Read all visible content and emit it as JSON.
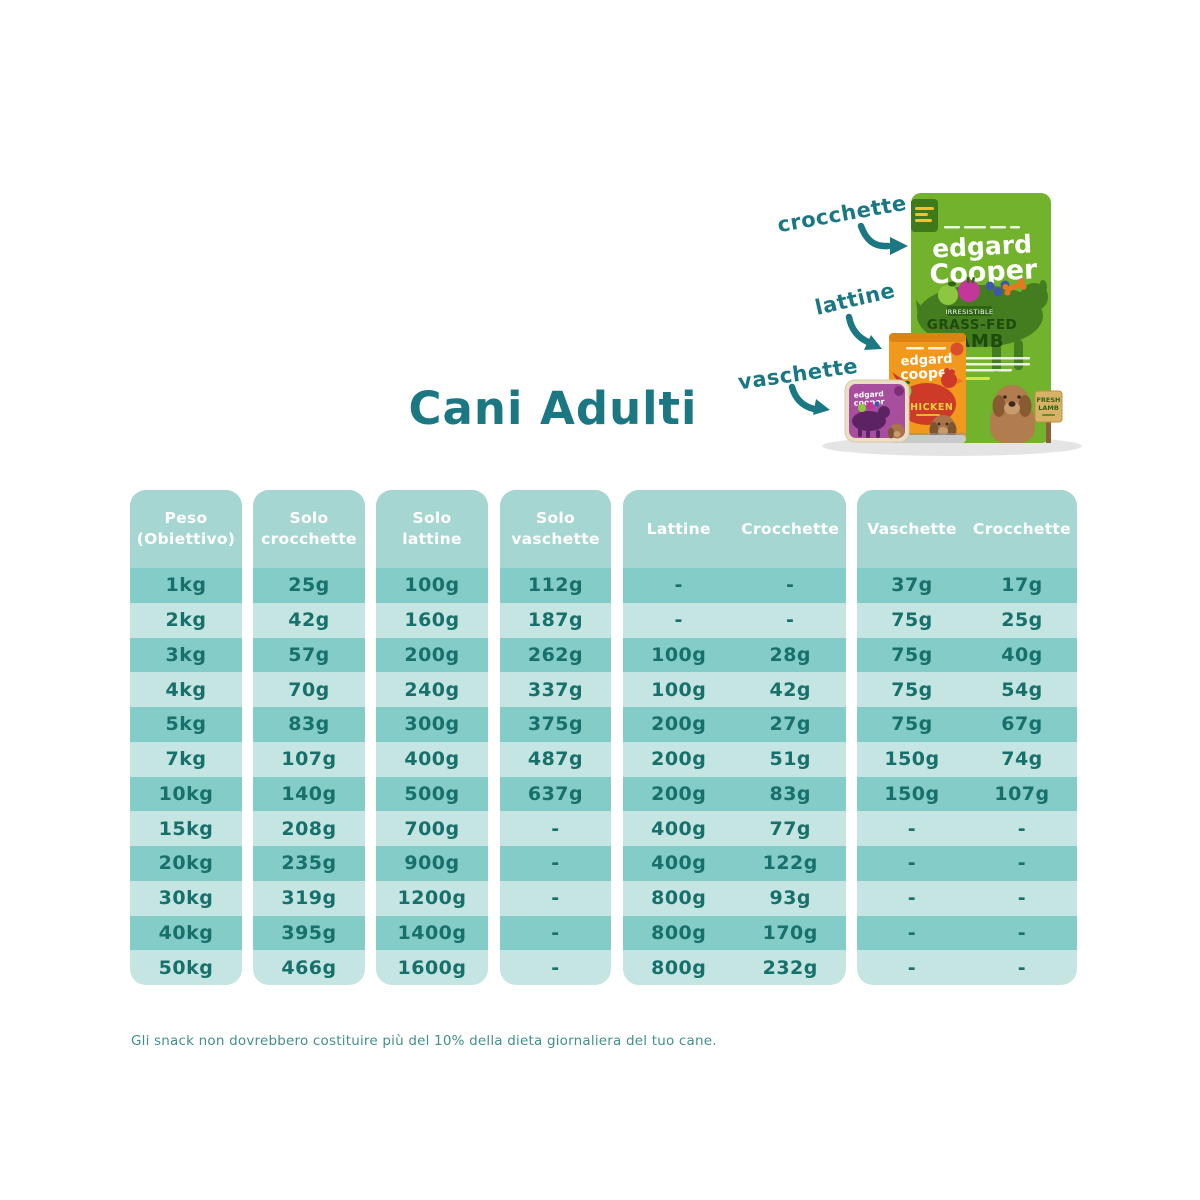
{
  "title": "Cani Adulti",
  "footnote": "Gli snack non dovrebbero costituire più del 10% della dieta giornaliera del tuo cane.",
  "product_labels": {
    "crocchette": "crocchette",
    "lattine": "lattine",
    "vaschette": "vaschette"
  },
  "products": {
    "bag": {
      "brand_top": "edgard",
      "brand_bottom": "Cooper",
      "badge_small": "IRRESISTIBLE",
      "headline_top": "GRASS-FED",
      "headline_bottom": "LAMB",
      "sign_top": "FRESH",
      "sign_bottom": "LAMB"
    },
    "can": {
      "brand_top": "edgard",
      "brand_bottom": "cooper",
      "flavor": "CHICKEN"
    },
    "tray": {
      "brand_top": "edgard",
      "brand_bottom": "cooper"
    }
  },
  "tables": [
    {
      "kind": "single",
      "header_lines": [
        "Peso",
        "(Obiettivo)"
      ],
      "values": [
        "1kg",
        "2kg",
        "3kg",
        "4kg",
        "5kg",
        "7kg",
        "10kg",
        "15kg",
        "20kg",
        "30kg",
        "40kg",
        "50kg"
      ]
    },
    {
      "kind": "single",
      "header_lines": [
        "Solo",
        "crocchette"
      ],
      "values": [
        "25g",
        "42g",
        "57g",
        "70g",
        "83g",
        "107g",
        "140g",
        "208g",
        "235g",
        "319g",
        "395g",
        "466g"
      ]
    },
    {
      "kind": "single",
      "header_lines": [
        "Solo",
        "lattine"
      ],
      "values": [
        "100g",
        "160g",
        "200g",
        "240g",
        "300g",
        "400g",
        "500g",
        "700g",
        "900g",
        "1200g",
        "1400g",
        "1600g"
      ]
    },
    {
      "kind": "single",
      "header_lines": [
        "Solo",
        "vaschette"
      ],
      "values": [
        "112g",
        "187g",
        "262g",
        "337g",
        "375g",
        "487g",
        "637g",
        "-",
        "-",
        "-",
        "-",
        "-"
      ]
    },
    {
      "kind": "double",
      "headers": [
        "Lattine",
        "Crocchette"
      ],
      "columns": [
        [
          "-",
          "-",
          "100g",
          "100g",
          "200g",
          "200g",
          "200g",
          "400g",
          "400g",
          "800g",
          "800g",
          "800g"
        ],
        [
          "-",
          "-",
          "28g",
          "42g",
          "27g",
          "51g",
          "83g",
          "77g",
          "122g",
          "93g",
          "170g",
          "232g"
        ]
      ]
    },
    {
      "kind": "double",
      "headers": [
        "Vaschette",
        "Crocchette"
      ],
      "columns": [
        [
          "37g",
          "75g",
          "75g",
          "75g",
          "75g",
          "150g",
          "150g",
          "-",
          "-",
          "-",
          "-",
          "-"
        ],
        [
          "17g",
          "25g",
          "40g",
          "54g",
          "67g",
          "74g",
          "107g",
          "-",
          "-",
          "-",
          "-",
          "-"
        ]
      ]
    }
  ],
  "colors": {
    "teal": "#1B7883",
    "cellText": "#17706C",
    "rowDark": "#83CCC7",
    "rowLight": "#C5E5E2",
    "headerBg": "#A6D6D1",
    "headerText": "#FFFFFF",
    "footnote": "#41908C",
    "bagGreen": "#73B22D",
    "blobGreen": "#447D1F",
    "canOrange": "#F2991D",
    "canRed": "#CE3A28",
    "trayPurple": "#A84E9E",
    "dogBrown": "#B17C4E"
  }
}
